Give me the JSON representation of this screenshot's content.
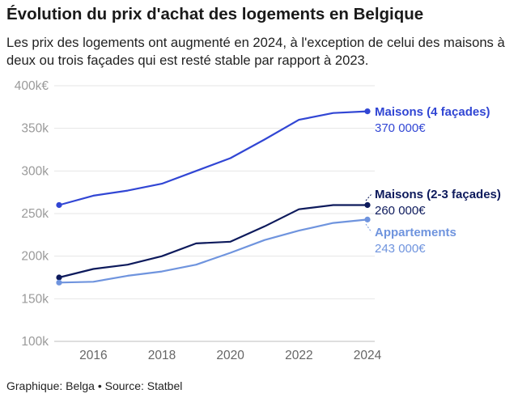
{
  "header": {
    "title": "Évolution du prix d'achat des logements en Belgique",
    "subtitle": "Les prix des logements ont augmenté en 2024, à l'exception de celui des maisons à deux ou trois façades qui est resté stable par rapport à 2023."
  },
  "footer": {
    "text": "Graphique: Belga • Source: Statbel"
  },
  "chart_data": {
    "type": "line",
    "title": "Évolution du prix d'achat des logements en Belgique",
    "xlabel": "",
    "ylabel": "",
    "x": [
      2015,
      2016,
      2017,
      2018,
      2019,
      2020,
      2021,
      2022,
      2023,
      2024
    ],
    "xticks": [
      2016,
      2018,
      2020,
      2022,
      2024
    ],
    "yticks": [
      100000,
      150000,
      200000,
      250000,
      300000,
      350000,
      400000
    ],
    "ytick_labels": [
      "100k",
      "150k",
      "200k",
      "250k",
      "300k",
      "350k",
      "400k€"
    ],
    "ylim": [
      100000,
      400000
    ],
    "xlim": [
      2015,
      2024
    ],
    "grid": "horizontal",
    "legend": "end-of-line labels",
    "series": [
      {
        "name": "Maisons (4 façades)",
        "end_label": "370 000€",
        "color": "#3146d4",
        "values": [
          260000,
          271000,
          277000,
          285000,
          300000,
          315000,
          337000,
          360000,
          368000,
          370000
        ]
      },
      {
        "name": "Maisons (2-3 façades)",
        "end_label": "260 000€",
        "color": "#0d1a5c",
        "values": [
          175000,
          185000,
          190000,
          200000,
          215000,
          217000,
          235000,
          255000,
          260000,
          260000
        ]
      },
      {
        "name": "Appartements",
        "end_label": "243 000€",
        "color": "#6f94de",
        "values": [
          169000,
          170000,
          177000,
          182000,
          190000,
          204000,
          219000,
          230000,
          239000,
          243000
        ]
      }
    ]
  }
}
